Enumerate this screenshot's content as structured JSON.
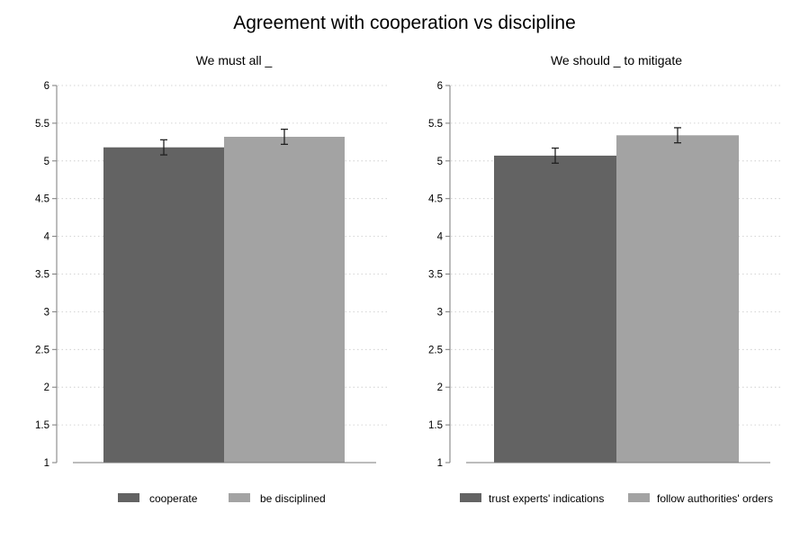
{
  "figure": {
    "title": "Agreement with cooperation vs discipline"
  },
  "chart_data": [
    {
      "type": "bar",
      "title": "We must all _",
      "xlabel": "",
      "ylabel": "",
      "ylim": [
        1,
        6
      ],
      "yticks": [
        1,
        1.5,
        2,
        2.5,
        3,
        3.5,
        4,
        4.5,
        5,
        5.5,
        6
      ],
      "ytick_labels": [
        "1",
        "1.5",
        "2",
        "2.5",
        "3",
        "3.5",
        "4",
        "4.5",
        "5",
        "5.5",
        "6"
      ],
      "grid": true,
      "legend_position": "bottom",
      "series": [
        {
          "name": "cooperate",
          "value": 5.18,
          "err_low": 5.08,
          "err_high": 5.28,
          "color": "#636363"
        },
        {
          "name": "be disciplined",
          "value": 5.32,
          "err_low": 5.22,
          "err_high": 5.42,
          "color": "#a3a3a3"
        }
      ]
    },
    {
      "type": "bar",
      "title": "We should _ to mitigate",
      "xlabel": "",
      "ylabel": "",
      "ylim": [
        1,
        6
      ],
      "yticks": [
        1,
        1.5,
        2,
        2.5,
        3,
        3.5,
        4,
        4.5,
        5,
        5.5,
        6
      ],
      "ytick_labels": [
        "1",
        "1.5",
        "2",
        "2.5",
        "3",
        "3.5",
        "4",
        "4.5",
        "5",
        "5.5",
        "6"
      ],
      "grid": true,
      "legend_position": "bottom",
      "series": [
        {
          "name": "trust experts' indications",
          "value": 5.07,
          "err_low": 4.97,
          "err_high": 5.17,
          "color": "#636363"
        },
        {
          "name": "follow authorities' orders",
          "value": 5.34,
          "err_low": 5.24,
          "err_high": 5.44,
          "color": "#a3a3a3"
        }
      ]
    }
  ]
}
